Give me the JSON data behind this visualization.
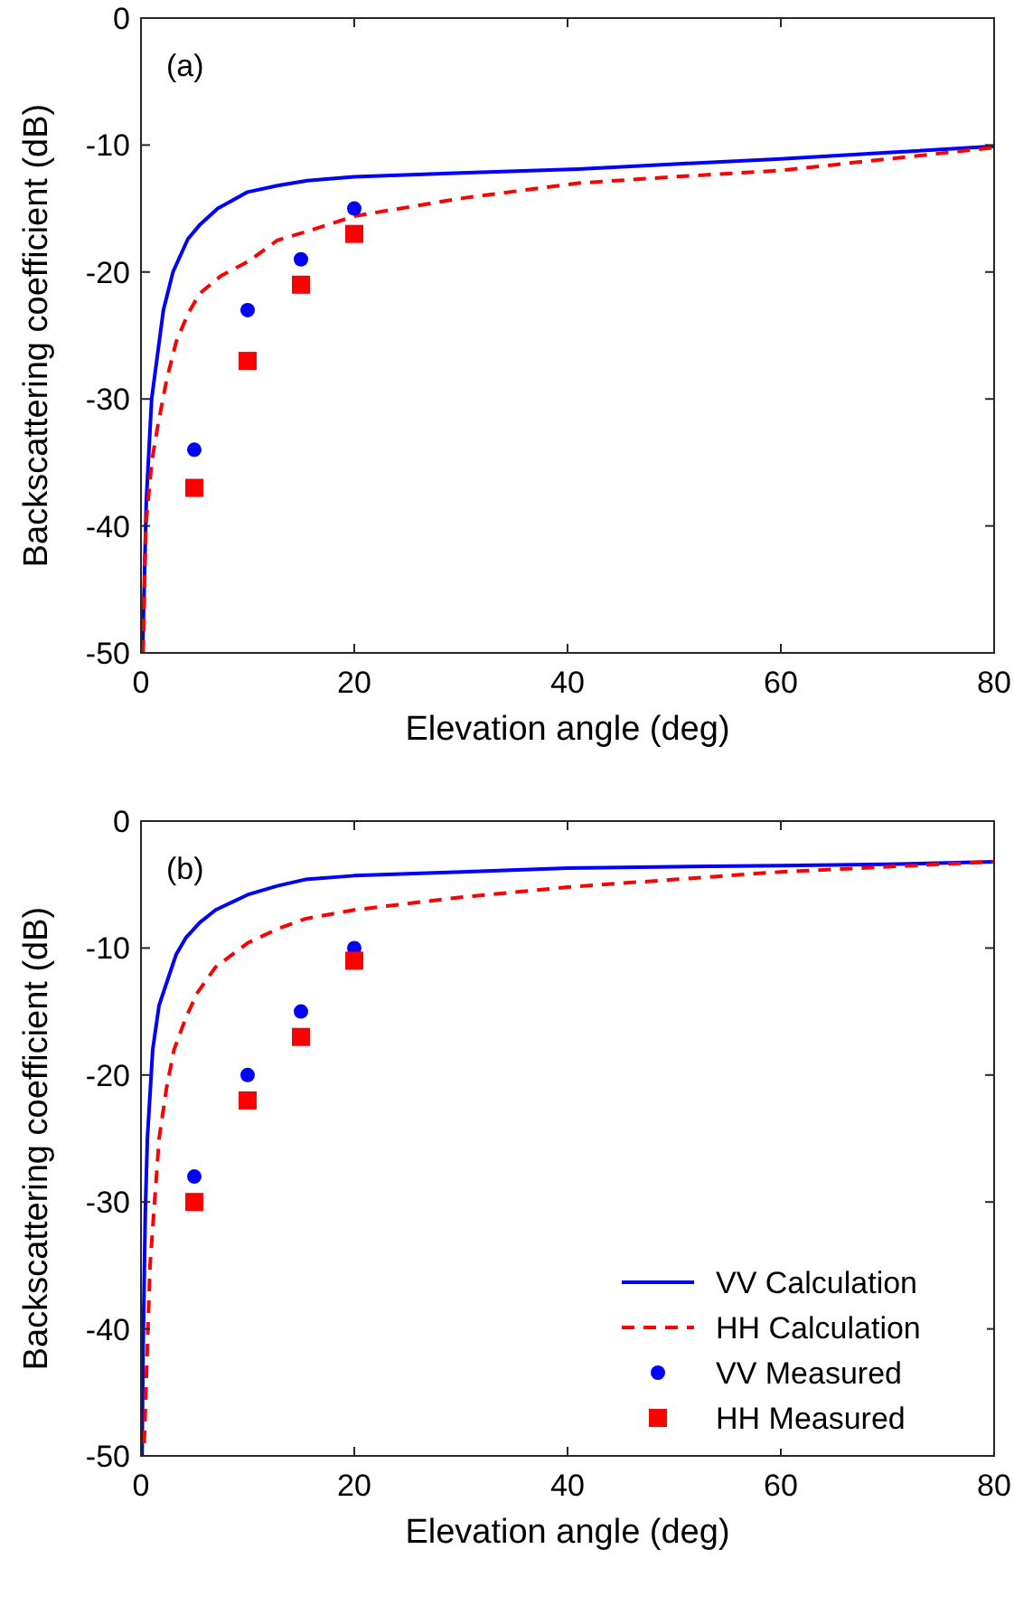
{
  "chart_data": [
    {
      "type": "line",
      "xlabel": "Elevation angle (deg)",
      "ylabel": "Backscattering coefficient (dB)",
      "annotations": [
        "(a)"
      ],
      "xlim": [
        0,
        80
      ],
      "xticks": [
        0,
        20,
        40,
        60,
        80
      ],
      "ylim": [
        -50,
        0
      ],
      "yticks": [
        -50,
        -40,
        -30,
        -20,
        -10,
        0
      ],
      "grid": false,
      "series": [
        {
          "type": "line",
          "line_style": "solid",
          "marker": "none",
          "color": "#0000ff",
          "x": [
            0.15,
            0.5,
            1,
            2.1,
            3,
            4.4,
            5.5,
            7.2,
            10,
            12.8,
            15.6,
            20,
            30,
            41,
            50,
            60,
            70,
            80
          ],
          "values": [
            -50,
            -38,
            -30,
            -23,
            -20,
            -17.4,
            -16.3,
            -15,
            -13.7,
            -13.2,
            -12.8,
            -12.5,
            -12.2,
            -11.9,
            -11.5,
            -11.1,
            -10.6,
            -10.1
          ]
        },
        {
          "type": "line",
          "line_style": "dashed",
          "marker": "none",
          "color": "#ff0000",
          "x": [
            0.2,
            0.45,
            1,
            1.6,
            2.4,
            3.3,
            4.4,
            5.5,
            7.5,
            10,
            12.8,
            15.6,
            20,
            30,
            41,
            50,
            60,
            70,
            80
          ],
          "values": [
            -50,
            -40,
            -35,
            -32,
            -28.5,
            -25.5,
            -23.3,
            -21.7,
            -20.3,
            -19.2,
            -17.5,
            -16.8,
            -15.6,
            -14.2,
            -13,
            -12.5,
            -12,
            -11.1,
            -10.2
          ]
        },
        {
          "type": "scatter",
          "marker": "circle",
          "color": "#0000ff",
          "x": [
            5,
            10,
            15,
            20
          ],
          "values": [
            -34,
            -23,
            -19,
            -15
          ]
        },
        {
          "type": "scatter",
          "marker": "square",
          "color": "#ff0000",
          "x": [
            5,
            10,
            15,
            20
          ],
          "values": [
            -37,
            -27,
            -21,
            -17
          ]
        }
      ]
    },
    {
      "type": "line",
      "xlabel": "Elevation angle (deg)",
      "ylabel": "Backscattering coefficient (dB)",
      "annotations": [
        "(b)"
      ],
      "xlim": [
        0,
        80
      ],
      "xticks": [
        0,
        20,
        40,
        60,
        80
      ],
      "ylim": [
        -50,
        0
      ],
      "yticks": [
        -50,
        -40,
        -30,
        -20,
        -10,
        0
      ],
      "grid": false,
      "legend": "bottom right",
      "series": [
        {
          "name": "VV Calculation",
          "type": "line",
          "line_style": "solid",
          "marker": "none",
          "color": "#0000ff",
          "x": [
            0.1,
            0.2,
            0.4,
            0.6,
            1.1,
            1.7,
            2.5,
            3.3,
            4.2,
            5.5,
            7,
            10,
            12.8,
            15.4,
            20,
            30,
            40,
            50,
            60,
            70,
            80
          ],
          "values": [
            -50,
            -41.5,
            -31,
            -25,
            -18,
            -14.5,
            -12.5,
            -10.5,
            -9.2,
            -8,
            -7,
            -5.8,
            -5.1,
            -4.6,
            -4.3,
            -4,
            -3.7,
            -3.6,
            -3.5,
            -3.4,
            -3.2
          ]
        },
        {
          "name": "HH Calculation",
          "type": "line",
          "line_style": "dashed",
          "marker": "none",
          "color": "#ff0000",
          "x": [
            0.3,
            0.85,
            1.7,
            2.4,
            3.1,
            4.2,
            5.3,
            7,
            10,
            12.8,
            15.4,
            20,
            30,
            40,
            50,
            60,
            70,
            80
          ],
          "values": [
            -49,
            -35,
            -25,
            -21,
            -18,
            -15.5,
            -13.5,
            -11.5,
            -9.6,
            -8.5,
            -7.7,
            -7,
            -6,
            -5.2,
            -4.6,
            -4,
            -3.6,
            -3.2
          ]
        },
        {
          "name": "VV Measured",
          "type": "scatter",
          "marker": "circle",
          "color": "#0000ff",
          "x": [
            5,
            10,
            15,
            20
          ],
          "values": [
            -28,
            -20,
            -15,
            -10
          ]
        },
        {
          "name": "HH Measured",
          "type": "scatter",
          "marker": "square",
          "color": "#ff0000",
          "x": [
            5,
            10,
            15,
            20
          ],
          "values": [
            -30,
            -22,
            -17,
            -11
          ]
        }
      ]
    }
  ]
}
